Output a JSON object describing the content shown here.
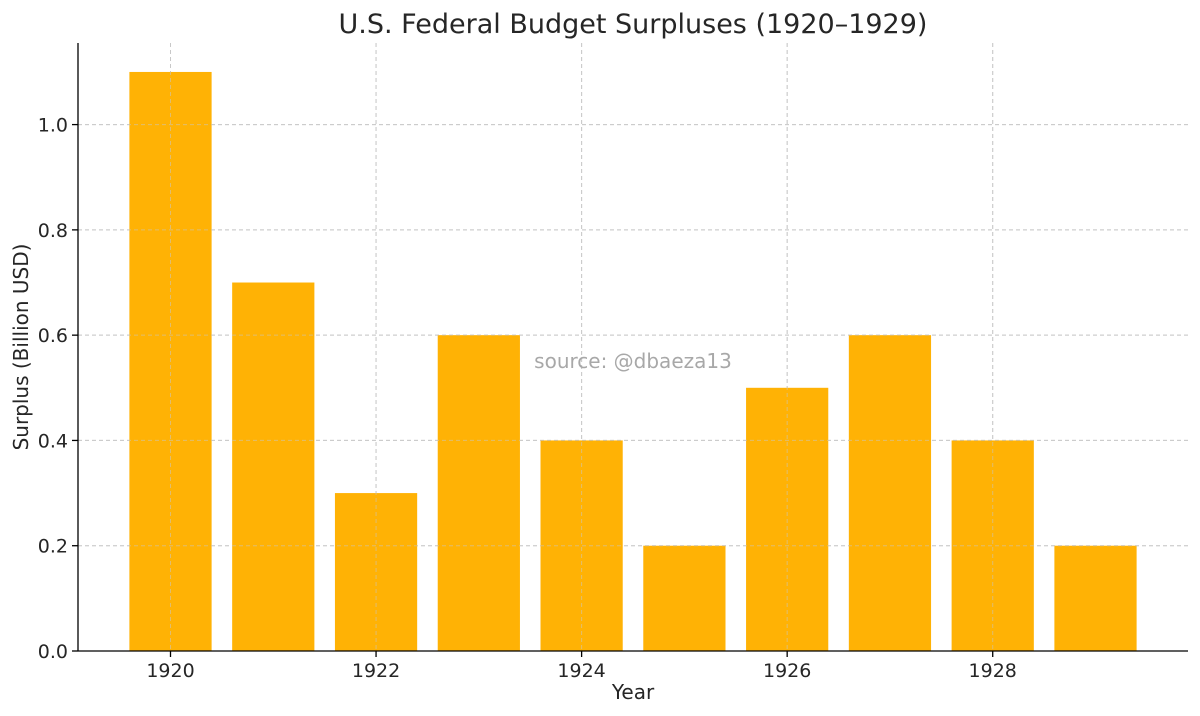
{
  "chart_data": {
    "type": "bar",
    "title": "U.S. Federal Budget Surpluses (1920–1929)",
    "xlabel": "Year",
    "ylabel": "Surplus (Billion USD)",
    "categories": [
      1920,
      1921,
      1922,
      1923,
      1924,
      1925,
      1926,
      1927,
      1928,
      1929
    ],
    "values": [
      1.1,
      0.7,
      0.3,
      0.6,
      0.4,
      0.2,
      0.5,
      0.6,
      0.4,
      0.2
    ],
    "ylim": [
      0,
      1.155
    ],
    "xlim": [
      1919.1,
      1929.9
    ],
    "x_ticks": [
      "1920",
      "1922",
      "1924",
      "1926",
      "1928"
    ],
    "y_ticks": [
      "0.0",
      "0.2",
      "0.4",
      "0.6",
      "0.8",
      "1.0"
    ],
    "bar_color": "#FFB000",
    "grid": true,
    "watermark": "source: @dbaeza13"
  }
}
